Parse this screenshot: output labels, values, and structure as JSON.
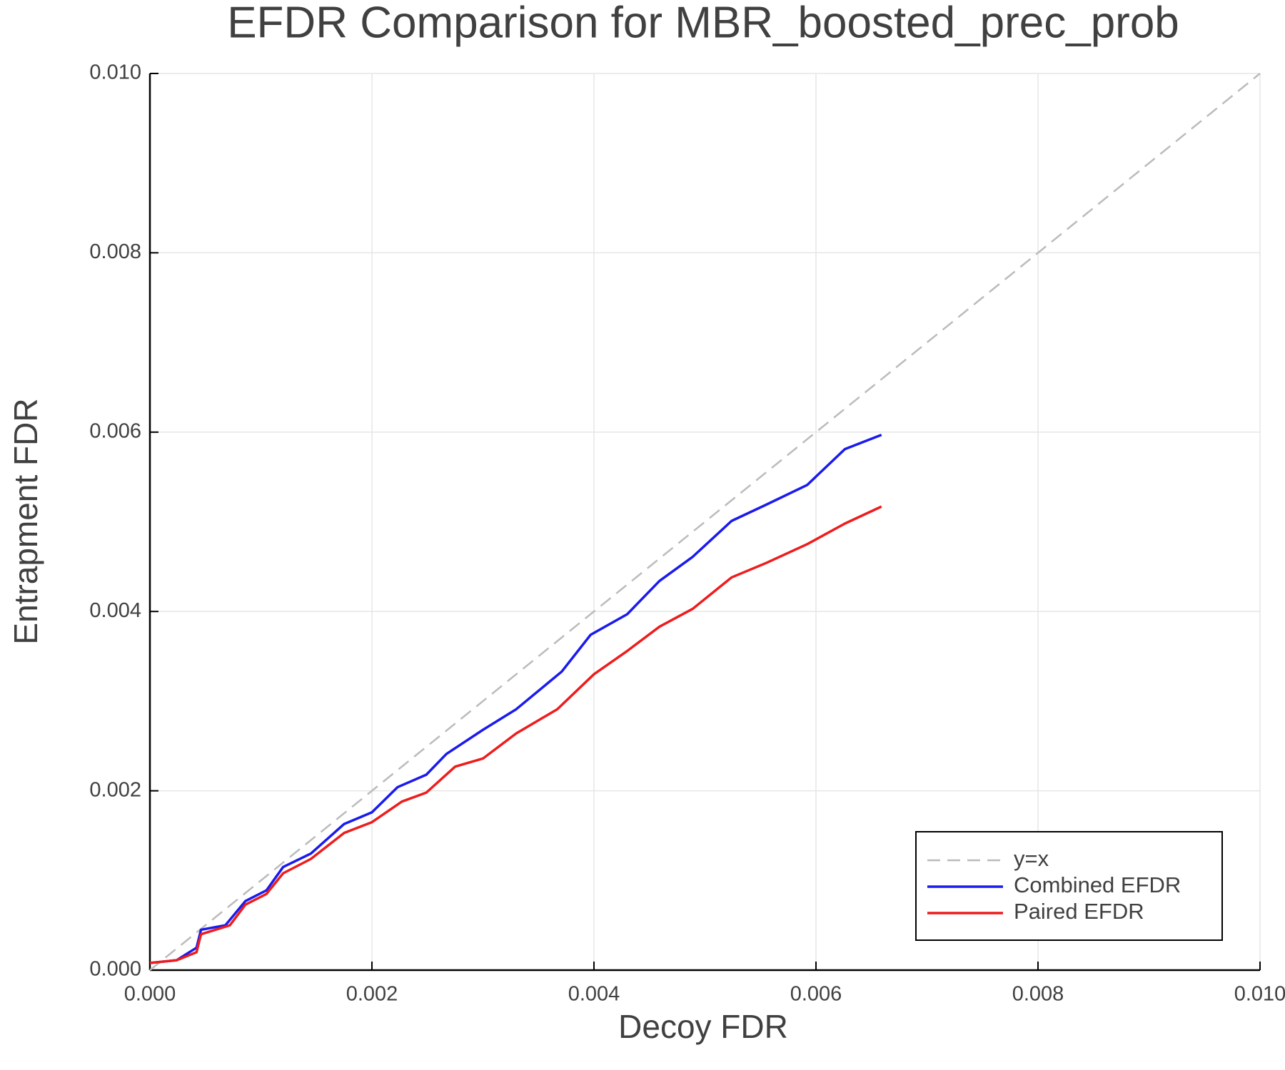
{
  "chart_data": {
    "type": "line",
    "title": "EFDR Comparison for MBR_boosted_prec_prob",
    "x_label": "Decoy FDR",
    "y_label": "Entrapment FDR",
    "xlim": [
      0,
      0.01
    ],
    "ylim": [
      0,
      0.01
    ],
    "xticks": [
      {
        "value": 0,
        "label": "0.000"
      },
      {
        "value": 0.002,
        "label": "0.002"
      },
      {
        "value": 0.004,
        "label": "0.004"
      },
      {
        "value": 0.006,
        "label": "0.006"
      },
      {
        "value": 0.008,
        "label": "0.008"
      },
      {
        "value": 0.01,
        "label": "0.010"
      }
    ],
    "yticks": [
      {
        "value": 0,
        "label": "0.000"
      },
      {
        "value": 0.002,
        "label": "0.002"
      },
      {
        "value": 0.004,
        "label": "0.004"
      },
      {
        "value": 0.006,
        "label": "0.006"
      },
      {
        "value": 0.008,
        "label": "0.008"
      },
      {
        "value": 0.01,
        "label": "0.010"
      }
    ],
    "grid": true,
    "legend": "bottom-right",
    "series": [
      {
        "name": "y=x",
        "color": "#bbbbbb",
        "line_style": "dashed",
        "x": [
          0,
          0.01
        ],
        "values": [
          0,
          0.01
        ]
      },
      {
        "name": "Combined EFDR",
        "color": "#1a1aee",
        "line_style": "solid",
        "x": [
          0,
          0.00024,
          0.00042,
          0.00046,
          0.00068,
          0.00086,
          0.00105,
          0.0012,
          0.00145,
          0.00175,
          0.002,
          0.00223,
          0.00249,
          0.00267,
          0.003,
          0.0033,
          0.00371,
          0.00397,
          0.0043,
          0.00459,
          0.00489,
          0.00524,
          0.00555,
          0.00592,
          0.00626,
          0.00659
        ],
        "values": [
          8e-05,
          0.00011,
          0.00025,
          0.00045,
          0.0005,
          0.00077,
          0.00089,
          0.00115,
          0.0013,
          0.00163,
          0.00176,
          0.00204,
          0.00218,
          0.00241,
          0.00268,
          0.00291,
          0.00333,
          0.00374,
          0.00397,
          0.00434,
          0.00461,
          0.00501,
          0.00519,
          0.00541,
          0.00581,
          0.00597
        ]
      },
      {
        "name": "Paired EFDR",
        "color": "#ee1c1c",
        "line_style": "solid",
        "x": [
          0,
          0.00024,
          0.00042,
          0.00046,
          0.00072,
          0.00086,
          0.00105,
          0.0012,
          0.00145,
          0.00175,
          0.002,
          0.00227,
          0.00249,
          0.00275,
          0.003,
          0.0033,
          0.00367,
          0.004,
          0.0043,
          0.00459,
          0.00489,
          0.00524,
          0.00555,
          0.00592,
          0.00626,
          0.00659
        ],
        "values": [
          8e-05,
          0.00011,
          0.0002,
          0.0004,
          0.0005,
          0.00073,
          0.00085,
          0.00108,
          0.00124,
          0.00153,
          0.00165,
          0.00188,
          0.00198,
          0.00227,
          0.00236,
          0.00264,
          0.00291,
          0.0033,
          0.00356,
          0.00383,
          0.00403,
          0.00438,
          0.00454,
          0.00475,
          0.00498,
          0.00517
        ]
      }
    ]
  }
}
